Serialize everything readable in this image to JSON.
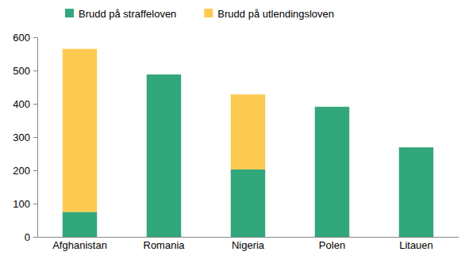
{
  "chart_data": {
    "type": "bar",
    "stacked": true,
    "legend": "top",
    "categories": [
      "Afghanistan",
      "Romania",
      "Nigeria",
      "Polen",
      "Litauen"
    ],
    "series": [
      {
        "name": "Brudd på straffeloven",
        "color": "#31a77b",
        "values": [
          75,
          488,
          203,
          391,
          269
        ]
      },
      {
        "name": "Brudd på utlendingsloven",
        "color": "#fdca50",
        "values": [
          490,
          0,
          225,
          0,
          0
        ]
      }
    ],
    "ylim": [
      0,
      600
    ],
    "yticks": [
      0,
      100,
      200,
      300,
      400,
      500,
      600
    ],
    "grid": false
  }
}
